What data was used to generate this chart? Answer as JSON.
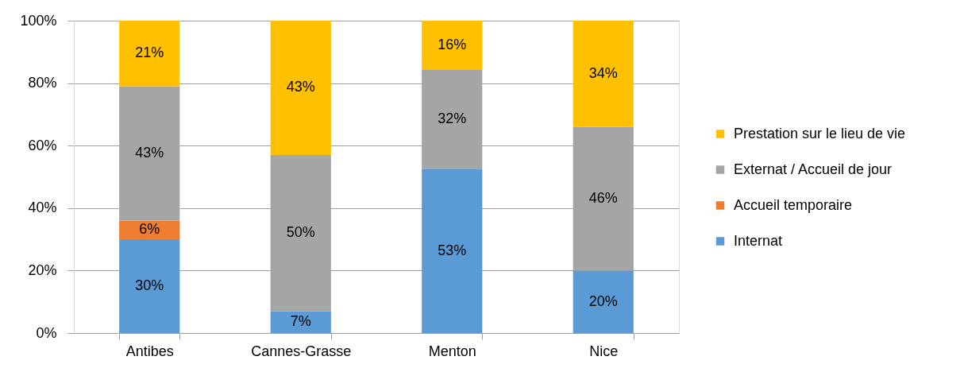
{
  "chart_data": {
    "type": "bar",
    "stacked": true,
    "categories": [
      "Antibes",
      "Cannes-Grasse",
      "Menton",
      "Nice"
    ],
    "series": [
      {
        "name": "Internat",
        "color": "#5b9bd5",
        "values": [
          30,
          7,
          52.6,
          20
        ],
        "value_labels": [
          "30%",
          "7%",
          "53%",
          "20%"
        ]
      },
      {
        "name": "Accueil temporaire",
        "color": "#ed7d31",
        "values": [
          6,
          null,
          null,
          null
        ],
        "value_labels": [
          "6%",
          null,
          null,
          null
        ]
      },
      {
        "name": "Externat / Accueil de jour",
        "color": "#a5a5a5",
        "values": [
          43,
          50,
          31.6,
          46
        ],
        "value_labels": [
          "43%",
          "50%",
          "32%",
          "46%"
        ]
      },
      {
        "name": "Prestation sur le lieu de vie",
        "color": "#ffc000",
        "values": [
          21,
          43,
          15.8,
          34
        ],
        "value_labels": [
          "21%",
          "43%",
          "16%",
          "34%"
        ]
      }
    ],
    "ylim": [
      0,
      100
    ],
    "yticks": [
      {
        "value": 0,
        "label": "0%"
      },
      {
        "value": 20,
        "label": "20%"
      },
      {
        "value": 40,
        "label": "40%"
      },
      {
        "value": 60,
        "label": "60%"
      },
      {
        "value": 80,
        "label": "80%"
      },
      {
        "value": 100,
        "label": "100%"
      }
    ],
    "grid": "y",
    "legend": "right"
  }
}
